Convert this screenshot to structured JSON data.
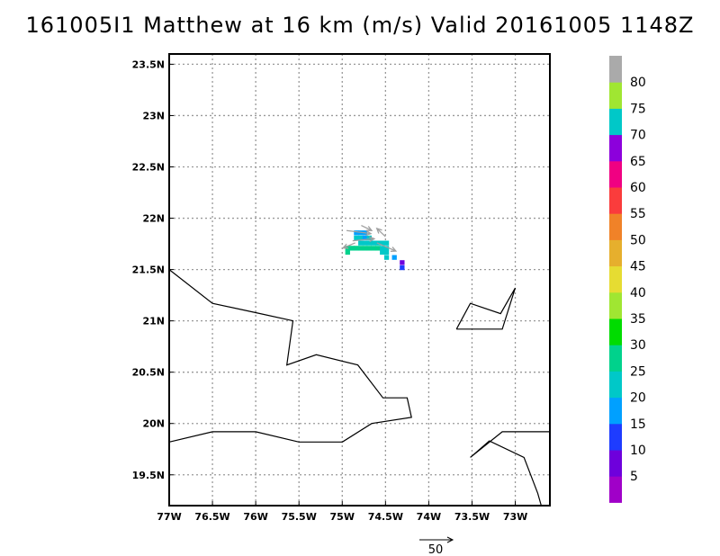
{
  "title": "161005I1 Matthew at 16 km (m/s) Valid 20161005 1148Z",
  "chart_data": {
    "type": "heatmap",
    "title": "161005I1 Matthew at 16 km (m/s) Valid 20161005 1148Z",
    "xlabel": "",
    "ylabel": "",
    "xlim": [
      -77.0,
      -72.6
    ],
    "ylim": [
      19.2,
      23.6
    ],
    "x_ticks": [
      {
        "value": -77.0,
        "label": "77W"
      },
      {
        "value": -76.5,
        "label": "76.5W"
      },
      {
        "value": -76.0,
        "label": "76W"
      },
      {
        "value": -75.5,
        "label": "75.5W"
      },
      {
        "value": -75.0,
        "label": "75W"
      },
      {
        "value": -74.5,
        "label": "74.5W"
      },
      {
        "value": -74.0,
        "label": "74W"
      },
      {
        "value": -73.5,
        "label": "73.5W"
      },
      {
        "value": -73.0,
        "label": "73W"
      }
    ],
    "y_ticks": [
      {
        "value": 19.5,
        "label": "19.5N"
      },
      {
        "value": 20.0,
        "label": "20N"
      },
      {
        "value": 20.5,
        "label": "20.5N"
      },
      {
        "value": 21.0,
        "label": "21N"
      },
      {
        "value": 21.5,
        "label": "21.5N"
      },
      {
        "value": 22.0,
        "label": "22N"
      },
      {
        "value": 22.5,
        "label": "22.5N"
      },
      {
        "value": 23.0,
        "label": "23N"
      },
      {
        "value": 23.5,
        "label": "23.5N"
      }
    ],
    "grid": true,
    "colorbar": {
      "labels": [
        "5",
        "10",
        "15",
        "20",
        "25",
        "30",
        "35",
        "40",
        "45",
        "50",
        "55",
        "60",
        "65",
        "70",
        "75",
        "80"
      ],
      "colors": [
        "#a000c8",
        "#6e00dc",
        "#1e3cff",
        "#00a0ff",
        "#00c8c8",
        "#00d28c",
        "#00dc00",
        "#a0e632",
        "#e6dc32",
        "#e6af2d",
        "#f08228",
        "#fa3c3c",
        "#f00082",
        "#8c00dc",
        "#00c8c8",
        "#a0e632",
        "#aaaaaa"
      ]
    },
    "wind_cells": [
      {
        "lon": -74.84,
        "lat": 21.86,
        "color": "#00a0ff"
      },
      {
        "lon": -74.79,
        "lat": 21.86,
        "color": "#00a0ff"
      },
      {
        "lon": -74.74,
        "lat": 21.86,
        "color": "#00a0ff"
      },
      {
        "lon": -74.84,
        "lat": 21.81,
        "color": "#00c8c8"
      },
      {
        "lon": -74.79,
        "lat": 21.81,
        "color": "#00c8c8"
      },
      {
        "lon": -74.74,
        "lat": 21.81,
        "color": "#00a0ff"
      },
      {
        "lon": -74.69,
        "lat": 21.81,
        "color": "#00c8c8"
      },
      {
        "lon": -74.79,
        "lat": 21.76,
        "color": "#00c8c8"
      },
      {
        "lon": -74.74,
        "lat": 21.76,
        "color": "#00c8c8"
      },
      {
        "lon": -74.69,
        "lat": 21.76,
        "color": "#00c8c8"
      },
      {
        "lon": -74.64,
        "lat": 21.76,
        "color": "#00c8c8"
      },
      {
        "lon": -74.59,
        "lat": 21.76,
        "color": "#00c8c8"
      },
      {
        "lon": -74.54,
        "lat": 21.76,
        "color": "#00c8c8"
      },
      {
        "lon": -74.49,
        "lat": 21.76,
        "color": "#00c8c8"
      },
      {
        "lon": -74.94,
        "lat": 21.71,
        "color": "#00d28c"
      },
      {
        "lon": -74.89,
        "lat": 21.71,
        "color": "#00d28c"
      },
      {
        "lon": -74.84,
        "lat": 21.71,
        "color": "#00d28c"
      },
      {
        "lon": -74.79,
        "lat": 21.71,
        "color": "#00d28c"
      },
      {
        "lon": -74.74,
        "lat": 21.71,
        "color": "#00d28c"
      },
      {
        "lon": -74.69,
        "lat": 21.71,
        "color": "#00d28c"
      },
      {
        "lon": -74.64,
        "lat": 21.71,
        "color": "#00d28c"
      },
      {
        "lon": -74.59,
        "lat": 21.71,
        "color": "#00d28c"
      },
      {
        "lon": -74.54,
        "lat": 21.71,
        "color": "#00c8c8"
      },
      {
        "lon": -74.49,
        "lat": 21.71,
        "color": "#00c8c8"
      },
      {
        "lon": -74.94,
        "lat": 21.67,
        "color": "#00d28c"
      },
      {
        "lon": -74.54,
        "lat": 21.67,
        "color": "#00c8c8"
      },
      {
        "lon": -74.49,
        "lat": 21.67,
        "color": "#00c8c8"
      },
      {
        "lon": -74.49,
        "lat": 21.62,
        "color": "#00c8c8"
      },
      {
        "lon": -74.4,
        "lat": 21.62,
        "color": "#00a0ff"
      },
      {
        "lon": -74.31,
        "lat": 21.57,
        "color": "#6e00dc"
      },
      {
        "lon": -74.31,
        "lat": 21.52,
        "color": "#1e3cff"
      }
    ],
    "wind_vectors": [
      {
        "lon": -74.95,
        "lat": 21.88,
        "dlon": 0.28,
        "dlat": -0.03
      },
      {
        "lon": -74.78,
        "lat": 21.93,
        "dlon": 0.12,
        "dlat": -0.05
      },
      {
        "lon": -74.5,
        "lat": 21.82,
        "dlon": -0.1,
        "dlat": 0.08
      },
      {
        "lon": -74.6,
        "lat": 21.76,
        "dlon": 0.22,
        "dlat": -0.08
      },
      {
        "lon": -74.85,
        "lat": 21.76,
        "dlon": -0.14,
        "dlat": -0.05
      },
      {
        "lon": -74.88,
        "lat": 21.78,
        "dlon": 0.25,
        "dlat": 0.02
      }
    ],
    "reference_vector": {
      "label": "50"
    },
    "coastlines": [
      [
        [
          -77.0,
          21.5
        ],
        [
          -76.5,
          21.17
        ],
        [
          -76.0,
          21.08
        ],
        [
          -75.57,
          21.0
        ],
        [
          -75.64,
          20.57
        ],
        [
          -75.3,
          20.67
        ],
        [
          -74.82,
          20.57
        ],
        [
          -74.53,
          20.25
        ],
        [
          -74.25,
          20.25
        ],
        [
          -74.2,
          20.06
        ],
        [
          -74.66,
          20.0
        ],
        [
          -75.0,
          19.82
        ],
        [
          -75.5,
          19.82
        ],
        [
          -76.0,
          19.92
        ],
        [
          -76.5,
          19.92
        ],
        [
          -77.0,
          19.82
        ]
      ],
      [
        [
          -73.68,
          20.92
        ],
        [
          -73.52,
          21.17
        ],
        [
          -73.17,
          21.07
        ],
        [
          -73.0,
          21.32
        ],
        [
          -73.15,
          20.92
        ],
        [
          -73.68,
          20.92
        ]
      ],
      [
        [
          -72.6,
          19.92
        ],
        [
          -73.15,
          19.92
        ],
        [
          -73.52,
          19.67
        ],
        [
          -73.3,
          19.83
        ],
        [
          -72.9,
          19.67
        ],
        [
          -72.74,
          19.32
        ],
        [
          -72.7,
          19.2
        ]
      ]
    ]
  }
}
